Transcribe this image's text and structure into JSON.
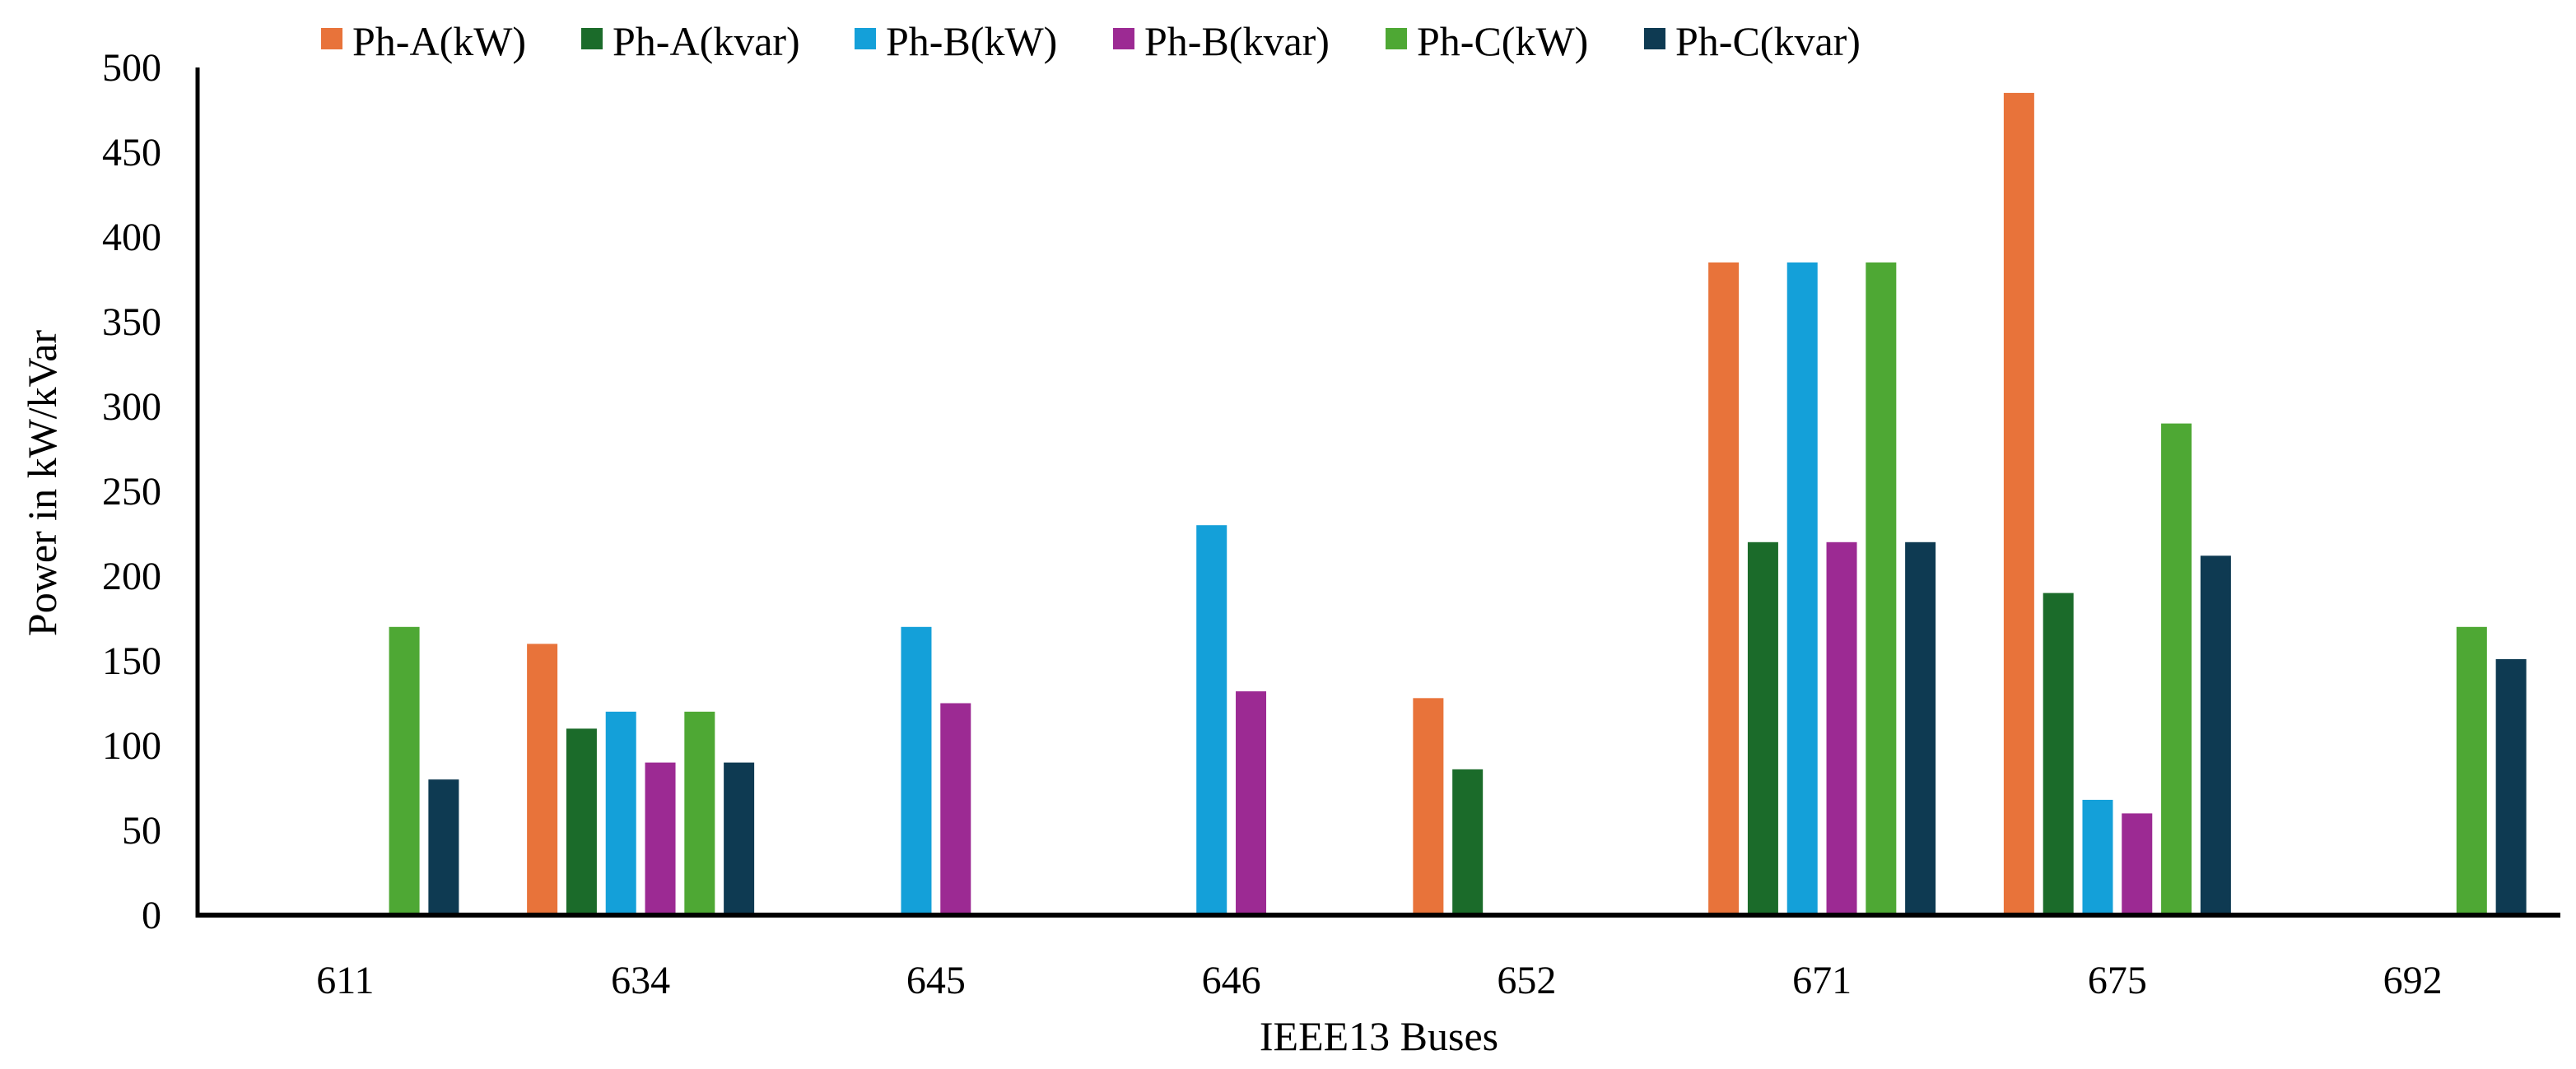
{
  "chart_data": {
    "type": "bar",
    "title": "",
    "xlabel": "IEEE13 Buses",
    "ylabel": "Power in kW/kVar",
    "ylim": [
      0,
      500
    ],
    "yticks": [
      0,
      50,
      100,
      150,
      200,
      250,
      300,
      350,
      400,
      450,
      500
    ],
    "grid": false,
    "legend_position": "top",
    "categories": [
      "611",
      "634",
      "645",
      "646",
      "652",
      "671",
      "675",
      "692"
    ],
    "series": [
      {
        "name": "Ph-A(kW)",
        "color": "#E8733A",
        "values": [
          0,
          160,
          0,
          0,
          128,
          385,
          485,
          0
        ]
      },
      {
        "name": "Ph-A(kvar)",
        "color": "#1B6B2A",
        "values": [
          0,
          110,
          0,
          0,
          86,
          220,
          190,
          0
        ]
      },
      {
        "name": "Ph-B(kW)",
        "color": "#14A0D9",
        "values": [
          0,
          120,
          170,
          230,
          0,
          385,
          68,
          0
        ]
      },
      {
        "name": "Ph-B(kvar)",
        "color": "#9C2A93",
        "values": [
          0,
          90,
          125,
          132,
          0,
          220,
          60,
          0
        ]
      },
      {
        "name": "Ph-C(kW)",
        "color": "#4EA834",
        "values": [
          170,
          120,
          0,
          0,
          0,
          385,
          290,
          170
        ]
      },
      {
        "name": "Ph-C(kvar)",
        "color": "#0E3A52",
        "values": [
          80,
          90,
          0,
          0,
          0,
          220,
          212,
          151
        ]
      }
    ]
  }
}
